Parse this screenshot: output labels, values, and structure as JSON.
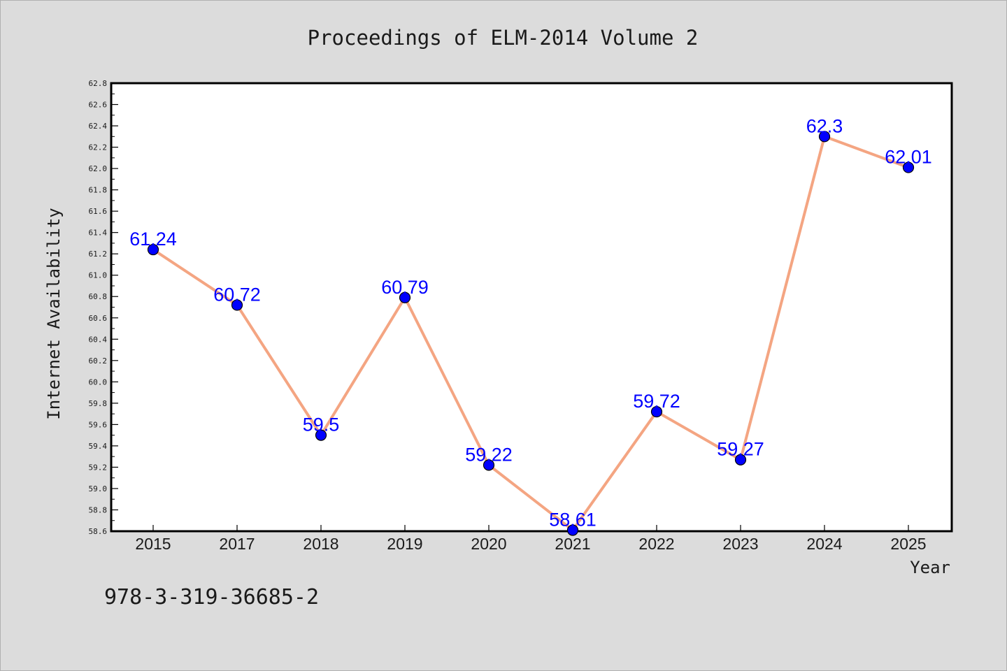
{
  "figure": {
    "title": "Proceedings of ELM-2014 Volume 2",
    "footer_text": "978-3-319-36685-2"
  },
  "colors": {
    "background": "#dcdcdc",
    "plot_background": "#ffffff",
    "line": "#f4a582",
    "marker": "#0000ff",
    "data_label": "#0000ff",
    "text": "#1a1a1a"
  },
  "chart_data": {
    "type": "line",
    "title": "Proceedings of ELM-2014 Volume 2",
    "xlabel": "Year",
    "ylabel": "Internet Availability",
    "categories": [
      "2015",
      "2017",
      "2018",
      "2019",
      "2020",
      "2021",
      "2022",
      "2023",
      "2024",
      "2025"
    ],
    "series": [
      {
        "values": [
          61.24,
          60.72,
          59.5,
          60.79,
          59.22,
          58.61,
          59.72,
          59.27,
          62.3,
          62.01
        ],
        "data_labels": [
          "61.24",
          "60.72",
          "59.5",
          "60.79",
          "59.22",
          "58.61",
          "59.72",
          "59.27",
          "62.3",
          "62.01"
        ]
      }
    ],
    "ylim": [
      58.6,
      62.8
    ],
    "yticks": [
      "58.6",
      "58.8",
      "59.0",
      "59.2",
      "59.4",
      "59.6",
      "59.8",
      "60.0",
      "60.2",
      "60.4",
      "60.6",
      "60.8",
      "61.0",
      "61.2",
      "61.4",
      "61.6",
      "61.8",
      "62.0",
      "62.2",
      "62.4",
      "62.6",
      "62.8"
    ],
    "grid": false,
    "legend": "none"
  }
}
